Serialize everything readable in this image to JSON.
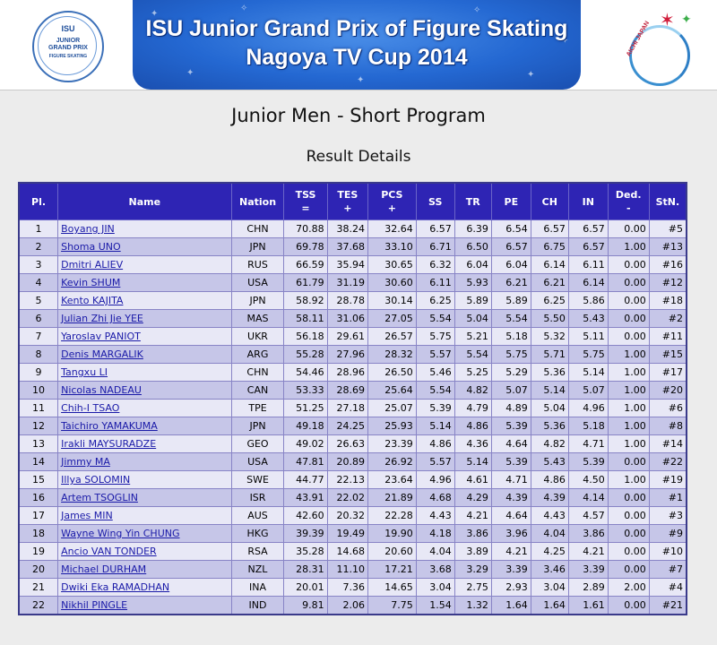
{
  "banner": {
    "title_line1": "ISU Junior Grand Prix of Figure Skating",
    "title_line2": "Nagoya TV Cup 2014",
    "left_logo_lines": [
      "ISU",
      "JUNIOR",
      "GRAND PRIX",
      "FIGURE SKATING"
    ],
    "right_logo_text": "AICHI JAPAN"
  },
  "page": {
    "title": "Junior Men - Short Program",
    "subtitle": "Result Details"
  },
  "table": {
    "headers": {
      "pl": "Pl.",
      "name": "Name",
      "nation": "Nation",
      "tss": "TSS",
      "tss_sub": "=",
      "tes": "TES",
      "tes_sub": "+",
      "pcs": "PCS",
      "pcs_sub": "+",
      "ss": "SS",
      "tr": "TR",
      "pe": "PE",
      "ch": "CH",
      "in": "IN",
      "ded": "Ded.",
      "ded_sub": "-",
      "stn": "StN."
    },
    "rows": [
      {
        "pl": "1",
        "name": "Boyang JIN",
        "nation": "CHN",
        "tss": "70.88",
        "tes": "38.24",
        "pcs": "32.64",
        "ss": "6.57",
        "tr": "6.39",
        "pe": "6.54",
        "ch": "6.57",
        "in": "6.57",
        "ded": "0.00",
        "stn": "#5"
      },
      {
        "pl": "2",
        "name": "Shoma UNO",
        "nation": "JPN",
        "tss": "69.78",
        "tes": "37.68",
        "pcs": "33.10",
        "ss": "6.71",
        "tr": "6.50",
        "pe": "6.57",
        "ch": "6.75",
        "in": "6.57",
        "ded": "1.00",
        "stn": "#13"
      },
      {
        "pl": "3",
        "name": "Dmitri ALIEV",
        "nation": "RUS",
        "tss": "66.59",
        "tes": "35.94",
        "pcs": "30.65",
        "ss": "6.32",
        "tr": "6.04",
        "pe": "6.04",
        "ch": "6.14",
        "in": "6.11",
        "ded": "0.00",
        "stn": "#16"
      },
      {
        "pl": "4",
        "name": "Kevin SHUM",
        "nation": "USA",
        "tss": "61.79",
        "tes": "31.19",
        "pcs": "30.60",
        "ss": "6.11",
        "tr": "5.93",
        "pe": "6.21",
        "ch": "6.21",
        "in": "6.14",
        "ded": "0.00",
        "stn": "#12"
      },
      {
        "pl": "5",
        "name": "Kento KAJITA",
        "nation": "JPN",
        "tss": "58.92",
        "tes": "28.78",
        "pcs": "30.14",
        "ss": "6.25",
        "tr": "5.89",
        "pe": "5.89",
        "ch": "6.25",
        "in": "5.86",
        "ded": "0.00",
        "stn": "#18"
      },
      {
        "pl": "6",
        "name": "Julian Zhi Jie YEE",
        "nation": "MAS",
        "tss": "58.11",
        "tes": "31.06",
        "pcs": "27.05",
        "ss": "5.54",
        "tr": "5.04",
        "pe": "5.54",
        "ch": "5.50",
        "in": "5.43",
        "ded": "0.00",
        "stn": "#2"
      },
      {
        "pl": "7",
        "name": "Yaroslav PANIOT",
        "nation": "UKR",
        "tss": "56.18",
        "tes": "29.61",
        "pcs": "26.57",
        "ss": "5.75",
        "tr": "5.21",
        "pe": "5.18",
        "ch": "5.32",
        "in": "5.11",
        "ded": "0.00",
        "stn": "#11"
      },
      {
        "pl": "8",
        "name": "Denis MARGALIK",
        "nation": "ARG",
        "tss": "55.28",
        "tes": "27.96",
        "pcs": "28.32",
        "ss": "5.57",
        "tr": "5.54",
        "pe": "5.75",
        "ch": "5.71",
        "in": "5.75",
        "ded": "1.00",
        "stn": "#15"
      },
      {
        "pl": "9",
        "name": "Tangxu LI",
        "nation": "CHN",
        "tss": "54.46",
        "tes": "28.96",
        "pcs": "26.50",
        "ss": "5.46",
        "tr": "5.25",
        "pe": "5.29",
        "ch": "5.36",
        "in": "5.14",
        "ded": "1.00",
        "stn": "#17"
      },
      {
        "pl": "10",
        "name": "Nicolas NADEAU",
        "nation": "CAN",
        "tss": "53.33",
        "tes": "28.69",
        "pcs": "25.64",
        "ss": "5.54",
        "tr": "4.82",
        "pe": "5.07",
        "ch": "5.14",
        "in": "5.07",
        "ded": "1.00",
        "stn": "#20"
      },
      {
        "pl": "11",
        "name": "Chih-I TSAO",
        "nation": "TPE",
        "tss": "51.25",
        "tes": "27.18",
        "pcs": "25.07",
        "ss": "5.39",
        "tr": "4.79",
        "pe": "4.89",
        "ch": "5.04",
        "in": "4.96",
        "ded": "1.00",
        "stn": "#6"
      },
      {
        "pl": "12",
        "name": "Taichiro YAMAKUMA",
        "nation": "JPN",
        "tss": "49.18",
        "tes": "24.25",
        "pcs": "25.93",
        "ss": "5.14",
        "tr": "4.86",
        "pe": "5.39",
        "ch": "5.36",
        "in": "5.18",
        "ded": "1.00",
        "stn": "#8"
      },
      {
        "pl": "13",
        "name": "Irakli MAYSURADZE",
        "nation": "GEO",
        "tss": "49.02",
        "tes": "26.63",
        "pcs": "23.39",
        "ss": "4.86",
        "tr": "4.36",
        "pe": "4.64",
        "ch": "4.82",
        "in": "4.71",
        "ded": "1.00",
        "stn": "#14"
      },
      {
        "pl": "14",
        "name": "Jimmy MA",
        "nation": "USA",
        "tss": "47.81",
        "tes": "20.89",
        "pcs": "26.92",
        "ss": "5.57",
        "tr": "5.14",
        "pe": "5.39",
        "ch": "5.43",
        "in": "5.39",
        "ded": "0.00",
        "stn": "#22"
      },
      {
        "pl": "15",
        "name": "Illya SOLOMIN",
        "nation": "SWE",
        "tss": "44.77",
        "tes": "22.13",
        "pcs": "23.64",
        "ss": "4.96",
        "tr": "4.61",
        "pe": "4.71",
        "ch": "4.86",
        "in": "4.50",
        "ded": "1.00",
        "stn": "#19"
      },
      {
        "pl": "16",
        "name": "Artem TSOGLIN",
        "nation": "ISR",
        "tss": "43.91",
        "tes": "22.02",
        "pcs": "21.89",
        "ss": "4.68",
        "tr": "4.29",
        "pe": "4.39",
        "ch": "4.39",
        "in": "4.14",
        "ded": "0.00",
        "stn": "#1"
      },
      {
        "pl": "17",
        "name": "James MIN",
        "nation": "AUS",
        "tss": "42.60",
        "tes": "20.32",
        "pcs": "22.28",
        "ss": "4.43",
        "tr": "4.21",
        "pe": "4.64",
        "ch": "4.43",
        "in": "4.57",
        "ded": "0.00",
        "stn": "#3"
      },
      {
        "pl": "18",
        "name": "Wayne Wing Yin CHUNG",
        "nation": "HKG",
        "tss": "39.39",
        "tes": "19.49",
        "pcs": "19.90",
        "ss": "4.18",
        "tr": "3.86",
        "pe": "3.96",
        "ch": "4.04",
        "in": "3.86",
        "ded": "0.00",
        "stn": "#9"
      },
      {
        "pl": "19",
        "name": "Ancio VAN TONDER",
        "nation": "RSA",
        "tss": "35.28",
        "tes": "14.68",
        "pcs": "20.60",
        "ss": "4.04",
        "tr": "3.89",
        "pe": "4.21",
        "ch": "4.25",
        "in": "4.21",
        "ded": "0.00",
        "stn": "#10"
      },
      {
        "pl": "20",
        "name": "Michael DURHAM",
        "nation": "NZL",
        "tss": "28.31",
        "tes": "11.10",
        "pcs": "17.21",
        "ss": "3.68",
        "tr": "3.29",
        "pe": "3.39",
        "ch": "3.46",
        "in": "3.39",
        "ded": "0.00",
        "stn": "#7"
      },
      {
        "pl": "21",
        "name": "Dwiki Eka RAMADHAN",
        "nation": "INA",
        "tss": "20.01",
        "tes": "7.36",
        "pcs": "14.65",
        "ss": "3.04",
        "tr": "2.75",
        "pe": "2.93",
        "ch": "3.04",
        "in": "2.89",
        "ded": "2.00",
        "stn": "#4"
      },
      {
        "pl": "22",
        "name": "Nikhil PINGLE",
        "nation": "IND",
        "tss": "9.81",
        "tes": "2.06",
        "pcs": "7.75",
        "ss": "1.54",
        "tr": "1.32",
        "pe": "1.64",
        "ch": "1.64",
        "in": "1.61",
        "ded": "0.00",
        "stn": "#21"
      }
    ]
  },
  "colors": {
    "header_bg": "#2e24b4",
    "row_light": "#e8e8f6",
    "row_dark": "#c6c6e8",
    "link": "#1a1aa8",
    "banner_blue": "#2468d2"
  }
}
